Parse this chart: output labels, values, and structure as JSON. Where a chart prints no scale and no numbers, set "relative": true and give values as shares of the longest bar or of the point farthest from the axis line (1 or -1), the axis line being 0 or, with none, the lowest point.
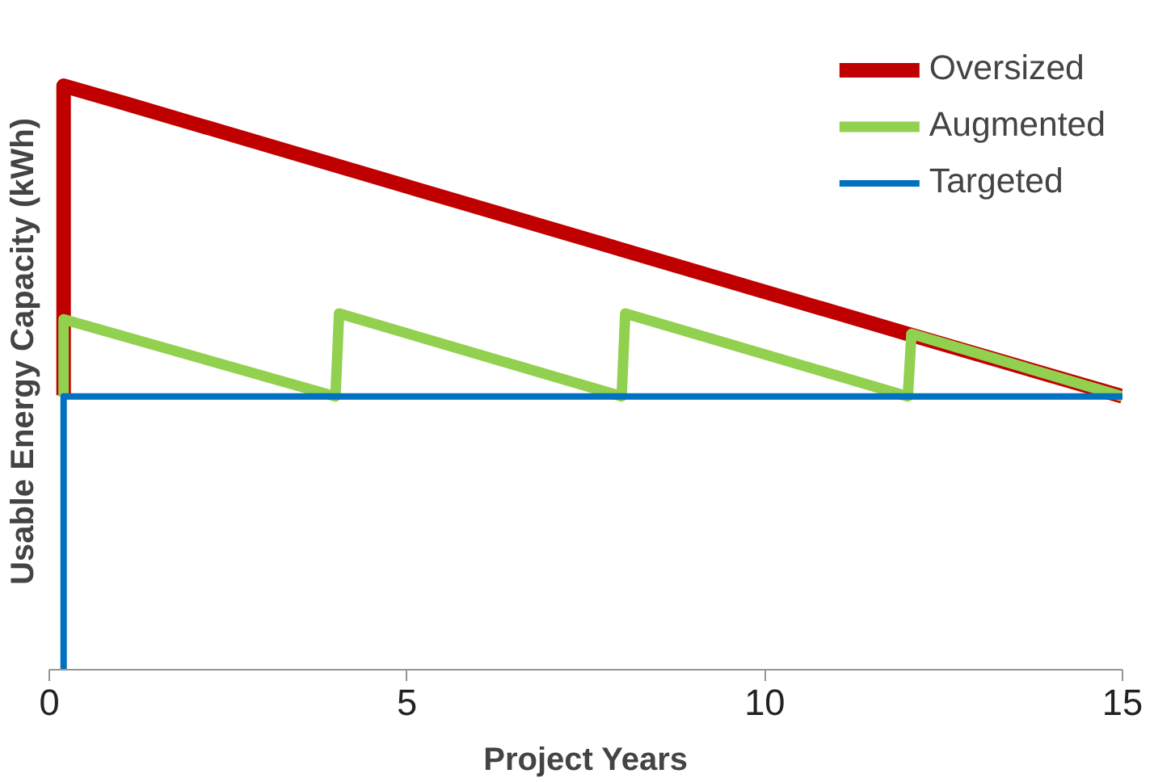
{
  "chart_data": {
    "type": "line",
    "xlabel": "Project Years",
    "ylabel": "Usable Energy Capacity (kWh)",
    "relative": true,
    "xlim": [
      0,
      15
    ],
    "xticks": [
      0,
      5,
      10,
      15
    ],
    "legend": "top right",
    "line_style": "solid",
    "grid": false,
    "series": [
      {
        "name": "Oversized",
        "color": "#c00000",
        "x": [
          0.2,
          0.2,
          1.05,
          12,
          15
        ],
        "values": [
          0.47,
          1.0,
          0.97,
          0.575,
          0.468
        ]
      },
      {
        "name": "Augmented",
        "color": "#92d050",
        "x": [
          0.2,
          0.2,
          4,
          4.05,
          8,
          8.05,
          12,
          12.05,
          15
        ],
        "values": [
          0.468,
          0.6,
          0.468,
          0.61,
          0.468,
          0.61,
          0.468,
          0.575,
          0.468
        ]
      },
      {
        "name": "Targeted",
        "color": "#0070c0",
        "x": [
          0.2,
          0.2,
          15
        ],
        "values": [
          0,
          0.468,
          0.468
        ]
      }
    ]
  }
}
